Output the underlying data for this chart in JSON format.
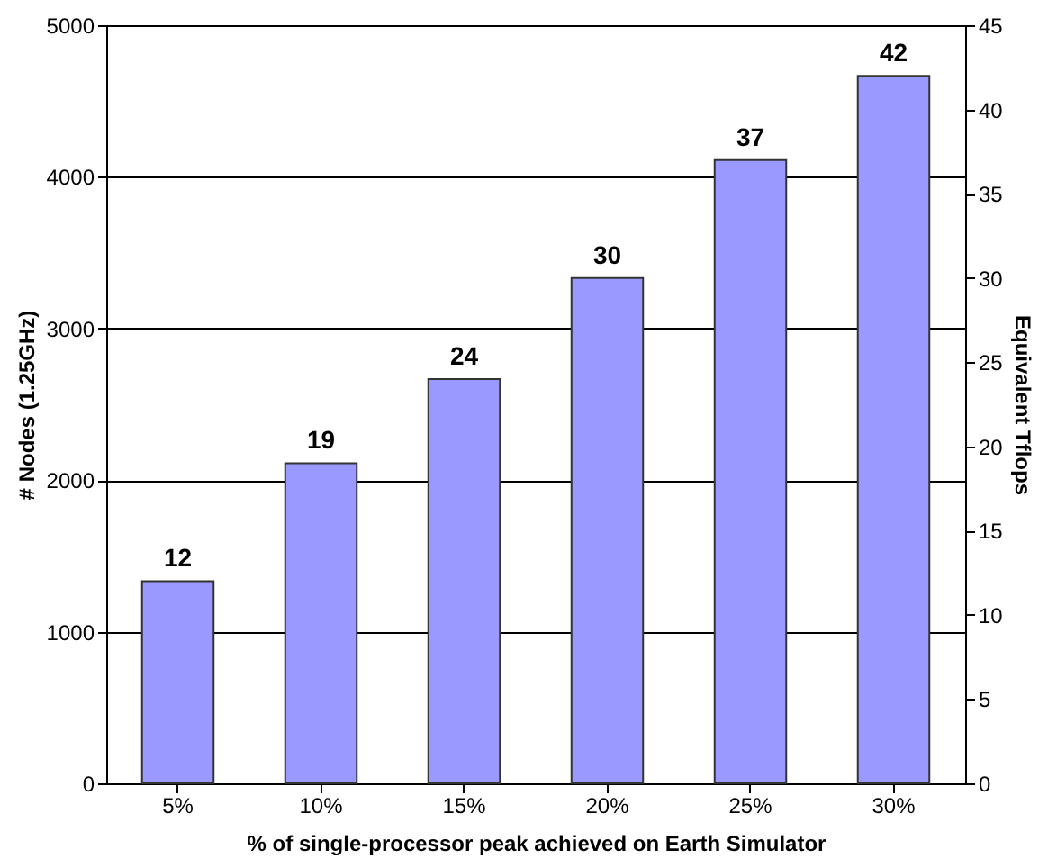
{
  "chart_data": {
    "type": "bar",
    "xlabel": "% of single-processor peak achieved on Earth Simulator",
    "ylabel": "# Nodes (1.25GHz)",
    "y2label": "Equivalent Tflops",
    "categories": [
      "5%",
      "10%",
      "15%",
      "20%",
      "25%",
      "30%"
    ],
    "series": [
      {
        "color": "#9999ff",
        "axis": "y2",
        "values": [
          12,
          19,
          24,
          30,
          37,
          42
        ]
      }
    ],
    "data_labels": true,
    "ylim": [
      0,
      5000
    ],
    "yticks": [
      0,
      1000,
      2000,
      3000,
      4000,
      5000
    ],
    "y2lim": [
      0,
      45
    ],
    "y2ticks": [
      0,
      5,
      10,
      15,
      20,
      25,
      30,
      35,
      40,
      45
    ],
    "grid": "y"
  }
}
